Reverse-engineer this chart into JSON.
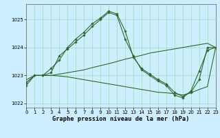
{
  "title": "Graphe pression niveau de la mer (hPa)",
  "bg_color": "#cceeff",
  "line_color": "#2d6a2d",
  "grid_color": "#aaddcc",
  "line1_y": [
    1022.75,
    1023.0,
    1023.0,
    1023.25,
    1023.55,
    1024.0,
    1024.3,
    1024.55,
    1024.85,
    1025.05,
    1025.3,
    1025.2,
    1024.6,
    1023.65,
    1023.25,
    1023.05,
    1022.85,
    1022.7,
    1022.4,
    1022.25,
    1022.4,
    1022.85,
    1024.0,
    1024.0
  ],
  "line2_y": [
    1022.65,
    1023.0,
    1023.0,
    1023.1,
    1023.7,
    1023.95,
    1024.2,
    1024.45,
    1024.75,
    1025.0,
    1025.25,
    1025.15,
    1024.3,
    1023.7,
    1023.2,
    1023.0,
    1022.8,
    1022.65,
    1022.3,
    1022.2,
    1022.45,
    1023.15,
    1023.9,
    1024.0
  ],
  "line3_y": [
    1022.85,
    1023.0,
    1023.0,
    1023.0,
    1023.05,
    1023.1,
    1023.15,
    1023.2,
    1023.28,
    1023.35,
    1023.42,
    1023.5,
    1023.58,
    1023.65,
    1023.72,
    1023.8,
    1023.85,
    1023.9,
    1023.95,
    1024.0,
    1024.05,
    1024.1,
    1024.15,
    1024.0
  ],
  "line4_y": [
    1022.75,
    1023.0,
    1023.0,
    1023.0,
    1022.98,
    1022.95,
    1022.9,
    1022.85,
    1022.8,
    1022.75,
    1022.7,
    1022.65,
    1022.6,
    1022.55,
    1022.5,
    1022.45,
    1022.4,
    1022.38,
    1022.35,
    1022.3,
    1022.38,
    1022.5,
    1022.6,
    1024.0
  ],
  "xlim": [
    0,
    23
  ],
  "ylim": [
    1021.85,
    1025.55
  ],
  "yticks": [
    1022,
    1023,
    1024,
    1025
  ],
  "xticks": [
    0,
    1,
    2,
    3,
    4,
    5,
    6,
    7,
    8,
    9,
    10,
    11,
    12,
    13,
    14,
    15,
    16,
    17,
    18,
    19,
    20,
    21,
    22,
    23
  ],
  "tick_fontsize": 5.0,
  "label_fontsize": 6.2
}
